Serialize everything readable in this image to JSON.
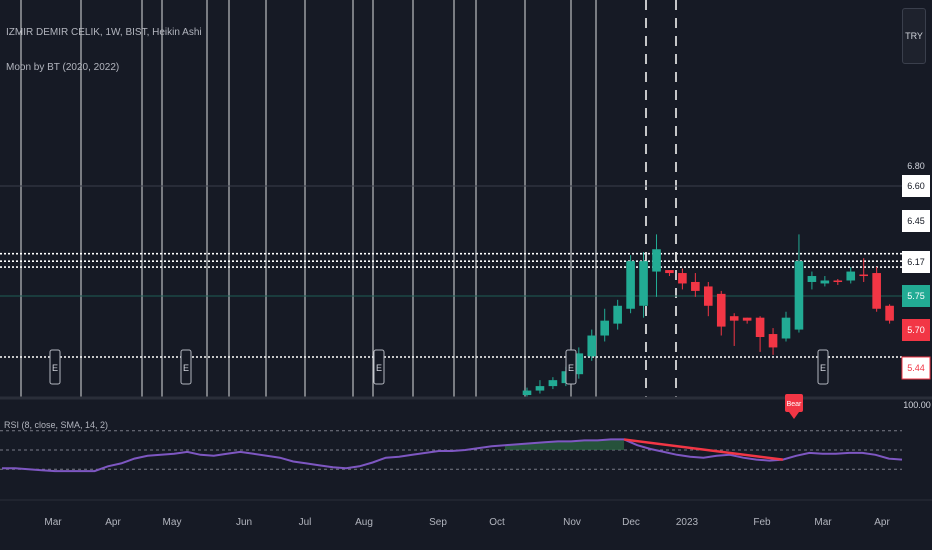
{
  "header": {
    "symbol_line": "IZMIR DEMIR CELIK, 1W, BIST, Heikin Ashi",
    "indicator_line": "Moon by BT (2020, 2022)",
    "currency": "TRY"
  },
  "rsi": {
    "title": "RSI (8, close, SMA, 14, 2)",
    "level_top": "100.00",
    "bear_label": "Bear",
    "values": [
      31,
      31,
      30,
      29,
      28,
      28,
      28,
      28,
      33,
      36,
      41,
      44,
      45,
      46,
      48,
      45,
      44,
      46,
      48,
      46,
      44,
      42,
      38,
      36,
      34,
      32,
      31,
      33,
      37,
      42,
      43,
      45,
      47,
      49,
      49,
      50,
      52,
      54,
      55,
      56,
      57,
      58,
      59,
      59,
      60,
      60,
      61,
      61,
      55,
      51,
      48,
      45,
      43,
      42,
      44,
      45,
      42,
      40,
      39,
      40,
      44,
      47,
      46,
      46,
      47,
      47,
      45,
      41,
      40
    ]
  },
  "colors": {
    "background": "#161a25",
    "up": "#22ab94",
    "down": "#f23645",
    "rsi_line": "#7e57c2",
    "grid_white": "#ffffff",
    "bear_line": "#f23645"
  },
  "chart_data": {
    "type": "candlestick",
    "title": "IZMIR DEMIR CELIK, 1W, BIST, Heikin Ashi",
    "price_axis_ticks": [
      "6.80",
      "6.60",
      "6.45",
      "6.17",
      "5.75",
      "5.70",
      "5.44"
    ],
    "price_labels": [
      {
        "value": "6.80",
        "kind": "plain"
      },
      {
        "value": "6.60",
        "kind": "white"
      },
      {
        "value": "6.45",
        "kind": "white"
      },
      {
        "value": "6.17",
        "kind": "white"
      },
      {
        "value": "5.75",
        "kind": "green"
      },
      {
        "value": "5.70",
        "kind": "red"
      },
      {
        "value": "5.44",
        "kind": "red-outline"
      }
    ],
    "ylim": [
      5.2,
      6.8
    ],
    "x_tick_labels": [
      "Mar",
      "Apr",
      "May",
      "Jun",
      "Jul",
      "Aug",
      "Sep",
      "Oct",
      "Nov",
      "Dec",
      "2023",
      "Feb",
      "Mar",
      "Apr"
    ],
    "horizontal_levels": [
      6.17,
      6.12,
      6.08,
      5.44
    ],
    "earnings_markers": [
      "E",
      "E",
      "E",
      "E",
      "E"
    ],
    "candles": [
      {
        "o": 5.22,
        "c": 5.25,
        "h": 5.27,
        "l": 5.21
      },
      {
        "o": 5.25,
        "c": 5.28,
        "h": 5.32,
        "l": 5.23
      },
      {
        "o": 5.28,
        "c": 5.32,
        "h": 5.34,
        "l": 5.26
      },
      {
        "o": 5.3,
        "c": 5.38,
        "h": 5.41,
        "l": 5.28
      },
      {
        "o": 5.36,
        "c": 5.5,
        "h": 5.54,
        "l": 5.33
      },
      {
        "o": 5.48,
        "c": 5.62,
        "h": 5.66,
        "l": 5.45
      },
      {
        "o": 5.62,
        "c": 5.72,
        "h": 5.8,
        "l": 5.58
      },
      {
        "o": 5.7,
        "c": 5.82,
        "h": 5.86,
        "l": 5.66
      },
      {
        "o": 5.8,
        "c": 6.12,
        "h": 6.16,
        "l": 5.77
      },
      {
        "o": 5.82,
        "c": 6.12,
        "h": 6.18,
        "l": 5.74
      },
      {
        "o": 6.05,
        "c": 6.2,
        "h": 6.3,
        "l": 5.88
      },
      {
        "o": 6.06,
        "c": 6.04,
        "h": 6.06,
        "l": 6.02
      },
      {
        "o": 6.04,
        "c": 5.97,
        "h": 6.07,
        "l": 5.93
      },
      {
        "o": 5.98,
        "c": 5.92,
        "h": 6.04,
        "l": 5.88
      },
      {
        "o": 5.95,
        "c": 5.82,
        "h": 5.98,
        "l": 5.75
      },
      {
        "o": 5.9,
        "c": 5.68,
        "h": 5.92,
        "l": 5.62
      },
      {
        "o": 5.75,
        "c": 5.72,
        "h": 5.77,
        "l": 5.55
      },
      {
        "o": 5.74,
        "c": 5.72,
        "h": 5.74,
        "l": 5.7
      },
      {
        "o": 5.74,
        "c": 5.61,
        "h": 5.75,
        "l": 5.51
      },
      {
        "o": 5.63,
        "c": 5.54,
        "h": 5.67,
        "l": 5.49
      },
      {
        "o": 5.6,
        "c": 5.74,
        "h": 5.78,
        "l": 5.58
      },
      {
        "o": 5.66,
        "c": 6.12,
        "h": 6.3,
        "l": 5.64
      },
      {
        "o": 5.98,
        "c": 6.02,
        "h": 6.05,
        "l": 5.93
      },
      {
        "o": 5.97,
        "c": 5.99,
        "h": 6.02,
        "l": 5.95
      },
      {
        "o": 5.99,
        "c": 5.98,
        "h": 6.0,
        "l": 5.96
      },
      {
        "o": 5.99,
        "c": 6.05,
        "h": 6.08,
        "l": 5.97
      },
      {
        "o": 6.03,
        "c": 6.02,
        "h": 6.14,
        "l": 5.98
      },
      {
        "o": 6.04,
        "c": 5.8,
        "h": 6.08,
        "l": 5.78
      },
      {
        "o": 5.82,
        "c": 5.72,
        "h": 5.83,
        "l": 5.7
      }
    ],
    "rsi_ylim": [
      0,
      100
    ]
  }
}
